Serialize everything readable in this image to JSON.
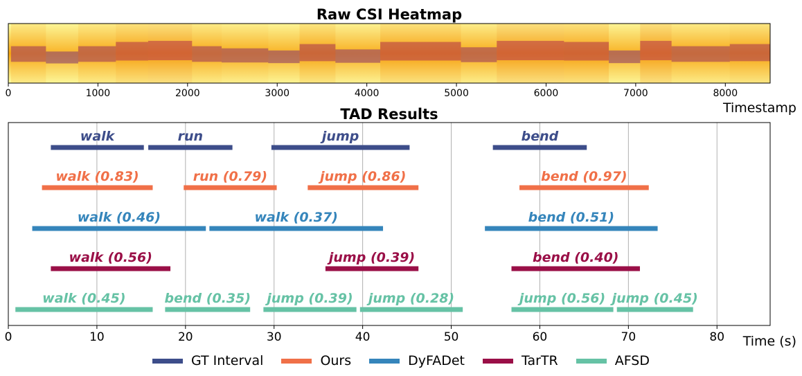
{
  "chart_data": [
    {
      "type": "heatmap",
      "title": "Raw CSI Heatmap",
      "xlabel": "Timestamp",
      "xlim": [
        0,
        8500
      ],
      "xticks": [
        0,
        1000,
        2000,
        3000,
        4000,
        5000,
        6000,
        7000,
        8000
      ],
      "colormap": "inferno",
      "regions": [
        {
          "x": [
            30,
            420
          ],
          "level": 0.55
        },
        {
          "x": [
            420,
            780
          ],
          "level": 0.8
        },
        {
          "x": [
            780,
            1200
          ],
          "level": 0.55
        },
        {
          "x": [
            1200,
            1560
          ],
          "level": 0.35
        },
        {
          "x": [
            1560,
            2050
          ],
          "level": 0.3
        },
        {
          "x": [
            2050,
            2380
          ],
          "level": 0.55
        },
        {
          "x": [
            2380,
            2900
          ],
          "level": 0.65
        },
        {
          "x": [
            2900,
            3250
          ],
          "level": 0.75
        },
        {
          "x": [
            3250,
            3650
          ],
          "level": 0.45
        },
        {
          "x": [
            3650,
            4150
          ],
          "level": 0.7
        },
        {
          "x": [
            4150,
            5050
          ],
          "level": 0.35
        },
        {
          "x": [
            5050,
            5450
          ],
          "level": 0.6
        },
        {
          "x": [
            5450,
            6200
          ],
          "level": 0.3
        },
        {
          "x": [
            6200,
            6700
          ],
          "level": 0.35
        },
        {
          "x": [
            6700,
            7050
          ],
          "level": 0.75
        },
        {
          "x": [
            7050,
            7400
          ],
          "level": 0.3
        },
        {
          "x": [
            7400,
            8050
          ],
          "level": 0.55
        },
        {
          "x": [
            8050,
            8500
          ],
          "level": 0.45
        }
      ]
    },
    {
      "type": "interval",
      "title": "TAD Results",
      "xlabel": "Time (s)",
      "xlim": [
        0,
        86
      ],
      "xticks": [
        0,
        10,
        20,
        30,
        40,
        50,
        60,
        70,
        80
      ],
      "grid": true,
      "legend_position": "bottom-center",
      "series": [
        {
          "name": "GT Interval",
          "color": "#3d4d8a",
          "segments": [
            {
              "label": "walk",
              "start": 4.8,
              "end": 15.3
            },
            {
              "label": "run",
              "start": 15.8,
              "end": 25.3
            },
            {
              "label": "jump",
              "start": 29.7,
              "end": 45.3
            },
            {
              "label": "bend",
              "start": 54.7,
              "end": 65.3
            }
          ]
        },
        {
          "name": "Ours",
          "color": "#f07048",
          "segments": [
            {
              "label": "walk (0.83)",
              "start": 3.8,
              "end": 16.3
            },
            {
              "label": "run (0.79)",
              "start": 19.8,
              "end": 30.3
            },
            {
              "label": "jump (0.86)",
              "start": 33.8,
              "end": 46.3
            },
            {
              "label": "bend (0.97)",
              "start": 57.7,
              "end": 72.3
            }
          ]
        },
        {
          "name": "DyFADet",
          "color": "#3585bb",
          "segments": [
            {
              "label": "walk (0.46)",
              "start": 2.7,
              "end": 22.3
            },
            {
              "label": "walk (0.37)",
              "start": 22.7,
              "end": 42.3
            },
            {
              "label": "bend (0.51)",
              "start": 53.8,
              "end": 73.3
            }
          ]
        },
        {
          "name": "TarTR",
          "color": "#9a0f47",
          "segments": [
            {
              "label": "walk (0.56)",
              "start": 4.8,
              "end": 18.3
            },
            {
              "label": "jump (0.39)",
              "start": 35.8,
              "end": 46.3
            },
            {
              "label": "bend (0.40)",
              "start": 56.8,
              "end": 71.3
            }
          ]
        },
        {
          "name": "AFSD",
          "color": "#66c2a5",
          "segments": [
            {
              "label": "walk (0.45)",
              "start": 0.8,
              "end": 16.3
            },
            {
              "label": "bend (0.35)",
              "start": 17.7,
              "end": 27.3
            },
            {
              "label": "jump (0.39)",
              "start": 28.8,
              "end": 39.3
            },
            {
              "label": "jump (0.28)",
              "start": 39.7,
              "end": 51.3
            },
            {
              "label": "jump (0.56)",
              "start": 56.8,
              "end": 68.3
            },
            {
              "label": "jump (0.45)",
              "start": 68.7,
              "end": 77.3
            }
          ]
        }
      ]
    }
  ]
}
